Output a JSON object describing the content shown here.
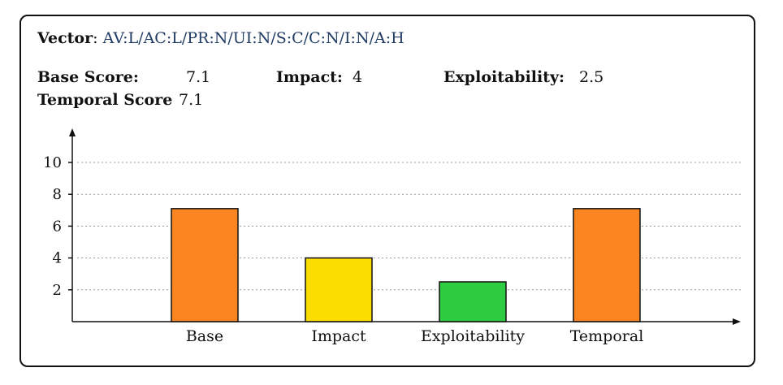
{
  "vector": {
    "label": "Vector",
    "sep": ":",
    "value": "AV:L/AC:L/PR:N/UI:N/S:C/C:N/I:N/A:H"
  },
  "scores": {
    "base_label": "Base Score:",
    "base_value": "7.1",
    "impact_label": "Impact:",
    "impact_value": "4",
    "exploit_label": "Exploitability:",
    "exploit_value": "2.5",
    "temporal_label": "Temporal Score",
    "temporal_value": "7.1"
  },
  "chart_data": {
    "type": "bar",
    "categories": [
      "Base",
      "Impact",
      "Exploitability",
      "Temporal"
    ],
    "values": [
      7.1,
      4,
      2.5,
      7.1
    ],
    "colors": [
      "#fb8520",
      "#fcdd00",
      "#2ecc40",
      "#fb8520"
    ],
    "yticks": [
      2,
      4,
      6,
      8,
      10
    ],
    "ylim": [
      0,
      11
    ],
    "grid": true,
    "title": "",
    "xlabel": "",
    "ylabel": ""
  }
}
